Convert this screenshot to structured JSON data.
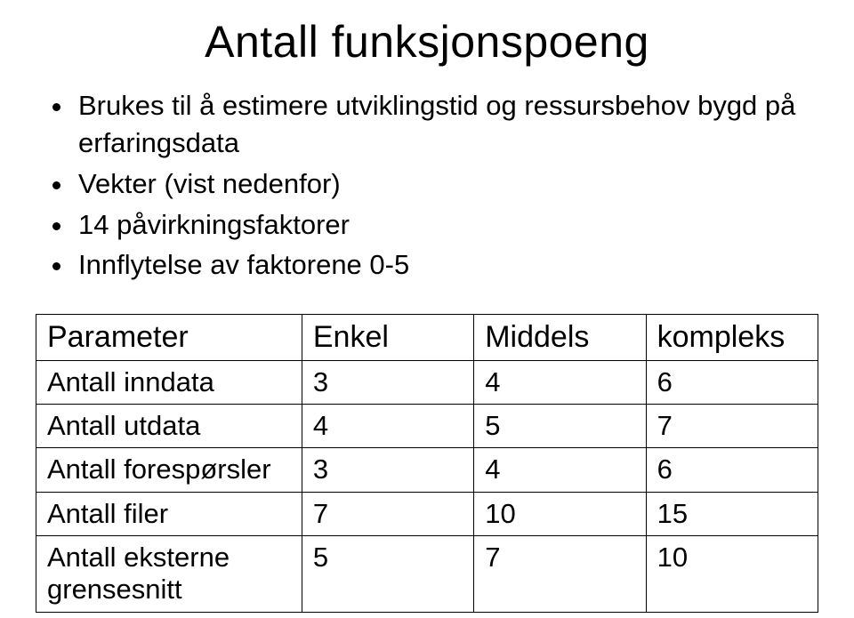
{
  "title": "Antall funksjonspoeng",
  "bullets": [
    "Brukes til å estimere utviklingstid og ressursbehov bygd på erfaringsdata",
    "Vekter (vist nedenfor)",
    "14 påvirkningsfaktorer",
    "Innflytelse av faktorene 0-5"
  ],
  "table": {
    "columns": [
      "Parameter",
      "Enkel",
      "Middels",
      "kompleks"
    ],
    "rows": [
      [
        "Antall inndata",
        "3",
        "4",
        "6"
      ],
      [
        "Antall utdata",
        "4",
        "5",
        "7"
      ],
      [
        "Antall forespørsler",
        "3",
        "4",
        "6"
      ],
      [
        "Antall filer",
        "7",
        "10",
        "15"
      ],
      [
        "Antall eksterne grensesnitt",
        "5",
        "7",
        "10"
      ]
    ],
    "header_fontsize": 34,
    "body_fontsize": 31,
    "border_color": "#000000",
    "background_color": "#ffffff"
  },
  "colors": {
    "text": "#000000",
    "background": "#ffffff"
  },
  "typography": {
    "title_fontsize": 50,
    "bullet_fontsize": 31,
    "font_family": "Arial"
  }
}
